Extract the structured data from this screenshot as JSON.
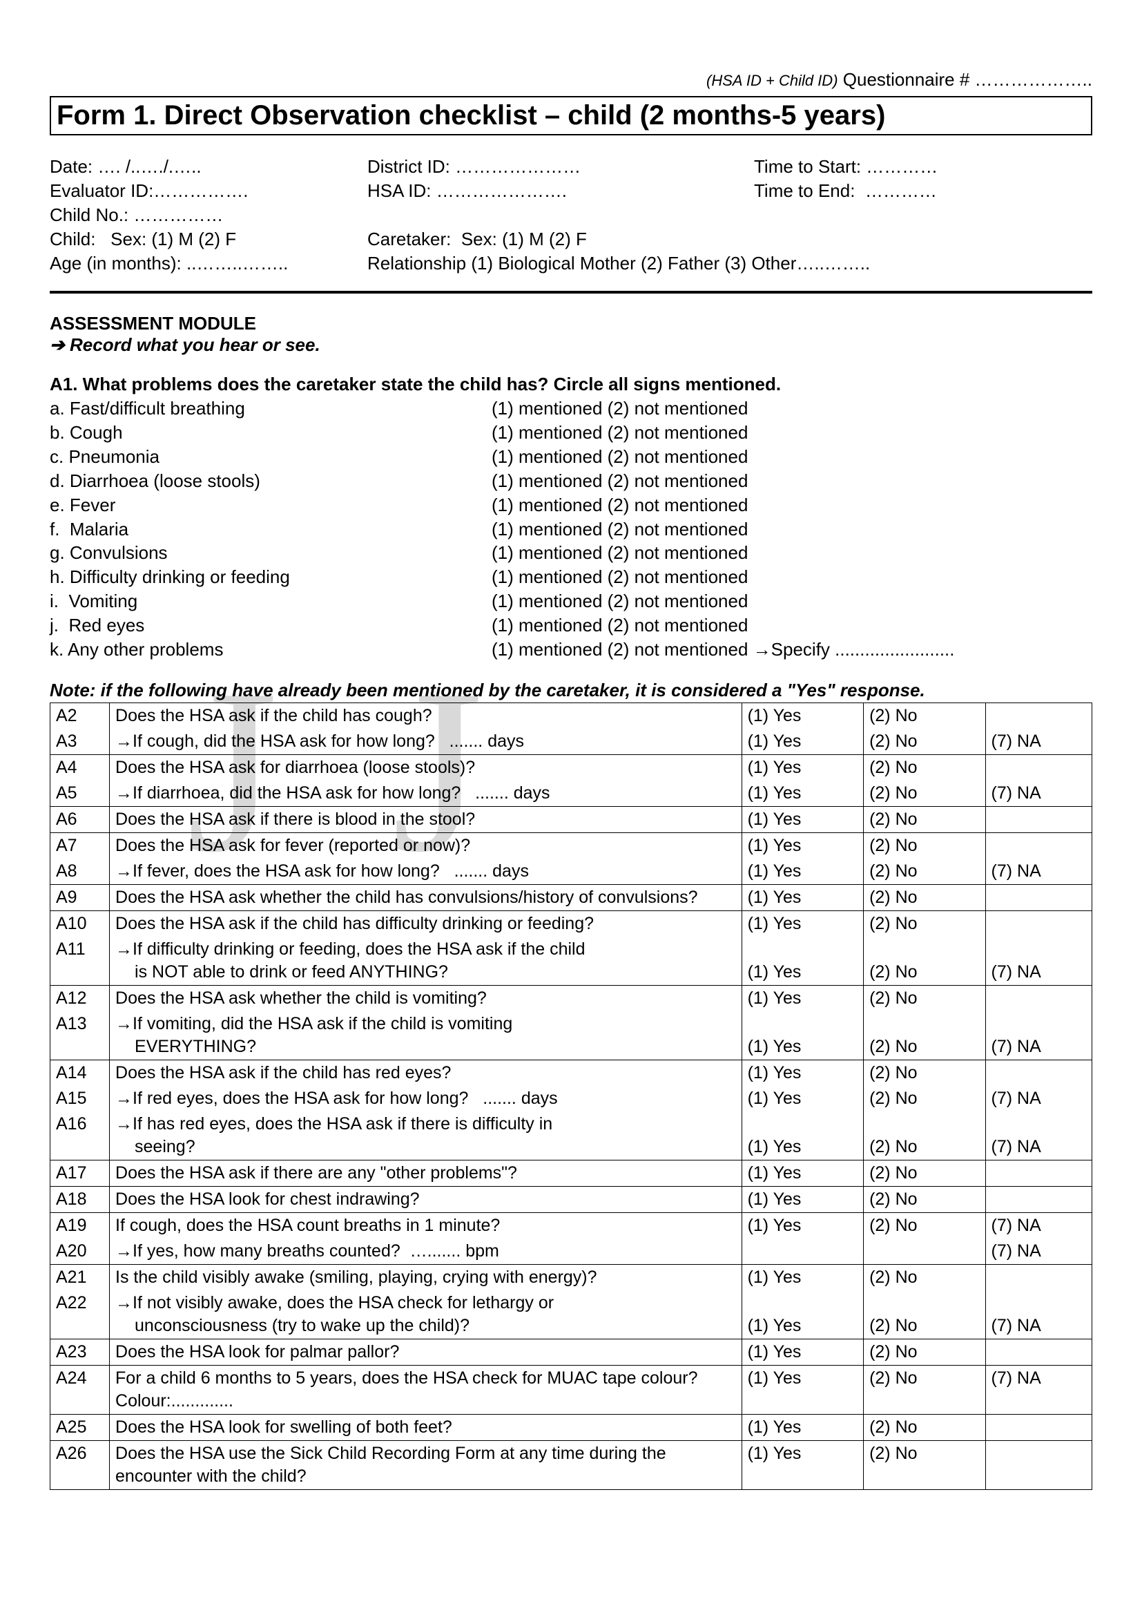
{
  "header": {
    "prefix_italic": "(HSA ID + Child ID)",
    "label": "Questionnaire # ……………….."
  },
  "title": "Form 1. Direct Observation checklist – child (2 months-5 years)",
  "meta": {
    "col1": [
      "Date: …. /..…./.…..",
      "Evaluator ID:…………….",
      "Child No.: ……………",
      "Child:   Sex: (1) M (2) F",
      "Age (in months): ..……..…….."
    ],
    "col2": [
      "District ID: …………………",
      "HSA ID: ………………….",
      "",
      "Caretaker:  Sex: (1) M (2) F",
      "Relationship (1) Biological Mother (2) Father (3) Other…..…….."
    ],
    "col3": [
      "Time to Start: …………",
      "Time to End:  …………"
    ]
  },
  "assessment": {
    "heading": "ASSESSMENT MODULE",
    "sub": "Record what you hear or see.",
    "a1_head": "A1. What problems does the caretaker state the child has? Circle all signs mentioned.",
    "items": [
      {
        "l": "a. Fast/difficult breathing",
        "r": "(1) mentioned (2) not mentioned"
      },
      {
        "l": "b. Cough",
        "r": "(1) mentioned (2) not mentioned"
      },
      {
        "l": "c. Pneumonia",
        "r": "(1) mentioned (2) not mentioned"
      },
      {
        "l": "d. Diarrhoea (loose stools)",
        "r": "(1) mentioned (2) not mentioned"
      },
      {
        "l": "e. Fever",
        "r": "(1) mentioned (2) not mentioned"
      },
      {
        "l": "f.  Malaria",
        "r": "(1) mentioned (2) not mentioned"
      },
      {
        "l": "g. Convulsions",
        "r": "(1) mentioned (2) not mentioned"
      },
      {
        "l": "h. Difficulty drinking or feeding",
        "r": "(1) mentioned (2) not mentioned"
      },
      {
        "l": "i.  Vomiting",
        "r": "(1) mentioned (2) not mentioned"
      },
      {
        "l": "j.  Red eyes",
        "r": "(1) mentioned (2) not mentioned"
      },
      {
        "l": "k. Any other problems",
        "r": "(1) mentioned (2) not mentioned →Specify ........................"
      }
    ],
    "note": "Note: if the following have already been mentioned by the caretaker, it is considered a \"Yes\" response."
  },
  "yes": "(1) Yes",
  "no": "(2) No",
  "na": "(7) NA",
  "rows": [
    {
      "group": [
        {
          "id": "A2",
          "q": "Does the HSA ask if the child has cough?",
          "a3": ""
        },
        {
          "id": "A3",
          "q": "→If cough, did the HSA ask for how long?   ....... days",
          "a3": "na"
        }
      ]
    },
    {
      "group": [
        {
          "id": "A4",
          "q": "Does the HSA ask for diarrhoea (loose stools)?",
          "a3": ""
        },
        {
          "id": "A5",
          "q": "→If diarrhoea, did the HSA ask for how long?   ....... days",
          "a3": "na"
        }
      ]
    },
    {
      "group": [
        {
          "id": "A6",
          "q": "Does the HSA ask if there is blood in the stool?",
          "a3": ""
        }
      ]
    },
    {
      "group": [
        {
          "id": "A7",
          "q": "Does the HSA ask for fever (reported or now)?",
          "a3": ""
        },
        {
          "id": "A8",
          "q": "→If fever, does the HSA ask for how long?   ....... days",
          "a3": "na"
        }
      ]
    },
    {
      "group": [
        {
          "id": "A9",
          "q": "Does the HSA ask whether the child has convulsions/history of convulsions?",
          "a3": ""
        }
      ]
    },
    {
      "group": [
        {
          "id": "A10",
          "q": "Does the HSA ask if the child has difficulty drinking or feeding?",
          "a3": ""
        },
        {
          "id": "A11",
          "q": "→If difficulty drinking or feeding, does the HSA ask if the child",
          "q2": "is NOT able to drink or feed ANYTHING?",
          "a3": "na"
        }
      ]
    },
    {
      "group": [
        {
          "id": "A12",
          "q": "Does the HSA ask whether the child is vomiting?",
          "a3": ""
        },
        {
          "id": "A13",
          "q": "→If vomiting, did the HSA ask if the child is vomiting",
          "q2": "EVERYTHING?",
          "a3": "na"
        }
      ]
    },
    {
      "group": [
        {
          "id": "A14",
          "q": "Does the HSA ask if the child has red eyes?",
          "a3": ""
        },
        {
          "id": "A15",
          "q": "→If red eyes, does the HSA ask for how long?   ....... days",
          "a3": "na"
        },
        {
          "id": "A16",
          "q": "→If has red eyes, does the HSA ask if there is difficulty in",
          "q2": "seeing?",
          "a3": "na"
        }
      ]
    },
    {
      "group": [
        {
          "id": "A17",
          "q": "Does the HSA ask if there are any \"other problems\"?",
          "a3": ""
        }
      ]
    },
    {
      "group": [
        {
          "id": "A18",
          "q": "Does the HSA look for chest indrawing?",
          "a3": ""
        }
      ]
    },
    {
      "group": [
        {
          "id": "A19",
          "q": "If cough, does the HSA count breaths in 1 minute?",
          "a3": "na"
        },
        {
          "id": "A20",
          "q": "→If yes, how many breaths counted?  …....... bpm",
          "a1": "",
          "a2": "",
          "a3": "na"
        }
      ]
    },
    {
      "group": [
        {
          "id": "A21",
          "q": "Is the child visibly awake (smiling, playing, crying with energy)?",
          "a3": ""
        },
        {
          "id": "A22",
          "q": "→If not visibly awake, does the HSA check for lethargy or",
          "q2": "unconsciousness (try to wake up the child)?",
          "a3": "na"
        }
      ]
    },
    {
      "group": [
        {
          "id": "A23",
          "q": "Does the HSA look for palmar pallor?",
          "a3": ""
        }
      ]
    },
    {
      "group": [
        {
          "id": "A24",
          "q": "For a child 6 months to 5 years, does the HSA check for MUAC tape colour?    Colour:.............",
          "a3": "na"
        }
      ]
    },
    {
      "group": [
        {
          "id": "A25",
          "q": "Does the HSA look for swelling of both feet?",
          "a3": ""
        }
      ]
    },
    {
      "group": [
        {
          "id": "A26",
          "q": "Does the HSA use the Sick Child Recording Form at any time during the encounter with the child?",
          "a3": ""
        }
      ]
    }
  ]
}
